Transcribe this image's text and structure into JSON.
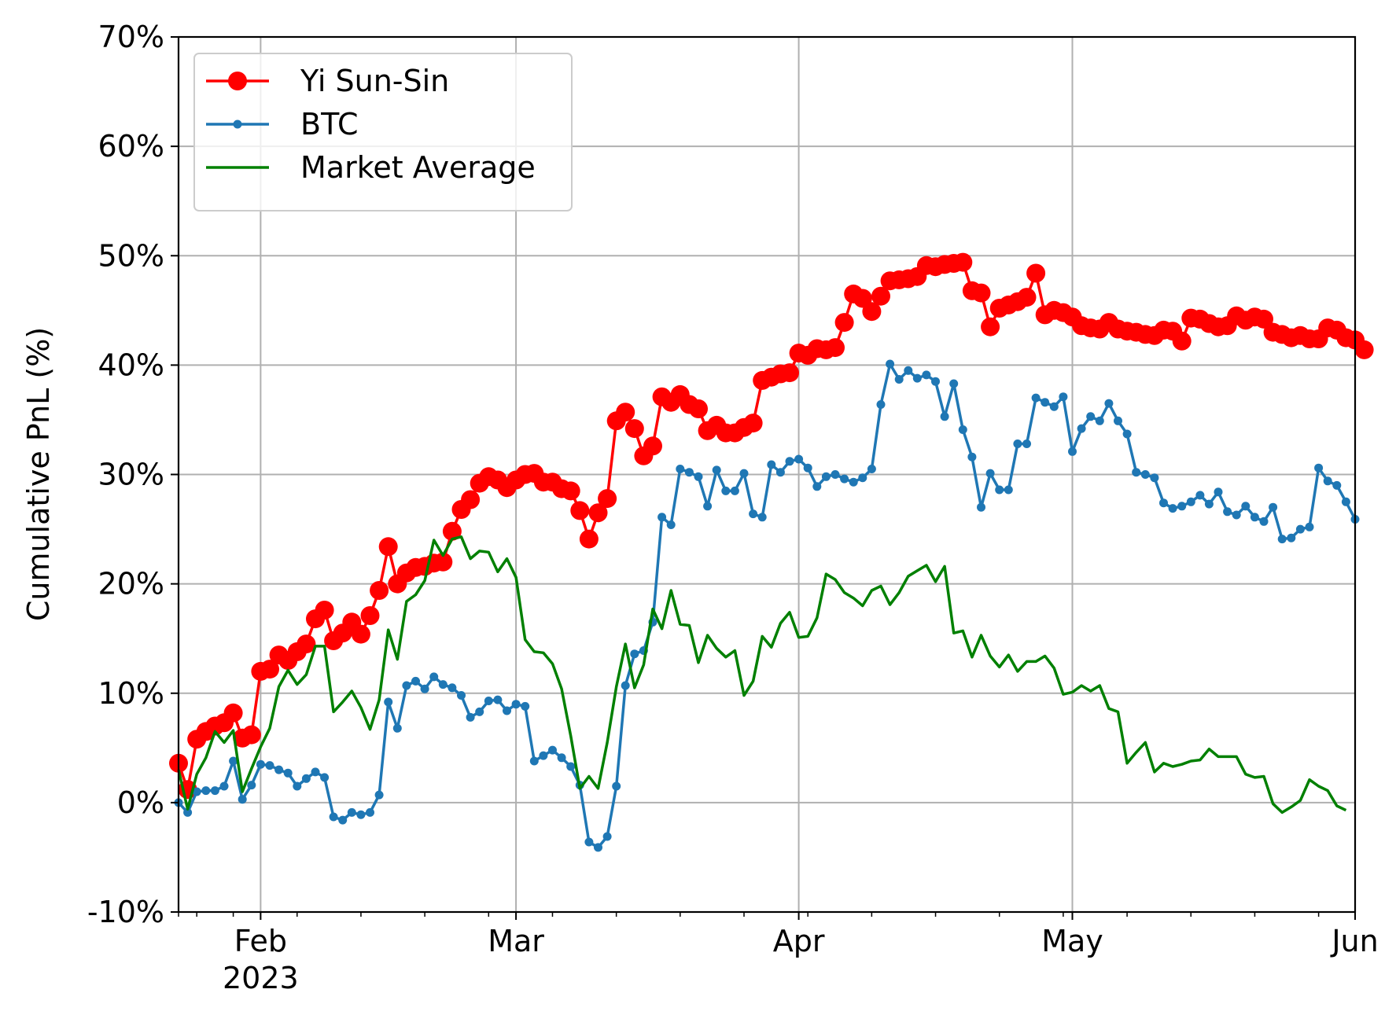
{
  "chart_data": {
    "type": "line",
    "title": "",
    "xlabel": "",
    "ylabel": "Cumulative PnL (%)",
    "ylim": [
      -10,
      70
    ],
    "xlim": [
      "2023-01-23",
      "2023-06-01"
    ],
    "grid": true,
    "legend_position": "upper-left",
    "y_ticks": [
      -10,
      0,
      10,
      20,
      30,
      40,
      50,
      60,
      70
    ],
    "y_tick_labels": [
      "-10%",
      "0%",
      "10%",
      "20%",
      "30%",
      "40%",
      "50%",
      "60%",
      "70%"
    ],
    "x_major_ticks": [
      {
        "date": "2023-02-01",
        "label": "Feb",
        "sublabel": "2023"
      },
      {
        "date": "2023-03-01",
        "label": "Mar",
        "sublabel": ""
      },
      {
        "date": "2023-04-01",
        "label": "Apr",
        "sublabel": ""
      },
      {
        "date": "2023-05-01",
        "label": "May",
        "sublabel": ""
      },
      {
        "date": "2023-06-01",
        "label": "Jun",
        "sublabel": ""
      }
    ],
    "x_minor_ticks": [
      "2023-01-23",
      "2023-01-25",
      "2023-01-29",
      "2023-02-05",
      "2023-02-12",
      "2023-02-19",
      "2023-02-26",
      "2023-03-05",
      "2023-03-12",
      "2023-03-19",
      "2023-03-26",
      "2023-04-02",
      "2023-04-09",
      "2023-04-16",
      "2023-04-23",
      "2023-04-30",
      "2023-05-07",
      "2023-05-14",
      "2023-05-21",
      "2023-05-28"
    ],
    "start_date": "2023-01-23",
    "series": [
      {
        "name": "Yi Sun-Sin",
        "color": "#ff0000",
        "marker": "large-circle",
        "values": [
          3.6,
          1.2,
          5.8,
          6.5,
          7.0,
          7.3,
          8.2,
          5.9,
          6.2,
          12.0,
          12.2,
          13.5,
          13.0,
          13.8,
          14.5,
          16.8,
          17.6,
          14.8,
          15.5,
          16.5,
          15.4,
          17.1,
          19.4,
          23.4,
          20.0,
          21.0,
          21.5,
          21.6,
          21.9,
          22.0,
          24.8,
          26.8,
          27.7,
          29.2,
          29.8,
          29.5,
          28.8,
          29.5,
          30.0,
          30.1,
          29.3,
          29.3,
          28.7,
          28.5,
          26.7,
          24.1,
          26.5,
          27.8,
          34.9,
          35.7,
          34.2,
          31.7,
          32.6,
          37.1,
          36.6,
          37.3,
          36.4,
          36.0,
          34.0,
          34.5,
          33.8,
          33.8,
          34.3,
          34.7,
          38.6,
          38.9,
          39.2,
          39.3,
          41.1,
          40.9,
          41.5,
          41.4,
          41.6,
          43.9,
          46.5,
          46.1,
          44.9,
          46.3,
          47.7,
          47.8,
          47.9,
          48.1,
          49.1,
          49.0,
          49.2,
          49.3,
          49.4,
          46.8,
          46.6,
          43.5,
          45.2,
          45.5,
          45.8,
          46.2,
          48.4,
          44.6,
          45.0,
          44.8,
          44.4,
          43.6,
          43.4,
          43.3,
          43.9,
          43.3,
          43.1,
          43.0,
          42.8,
          42.7,
          43.2,
          43.1,
          42.2,
          44.3,
          44.2,
          43.8,
          43.5,
          43.6,
          44.5,
          44.1,
          44.4,
          44.2,
          43.0,
          42.8,
          42.5,
          42.7,
          42.4,
          42.4,
          43.4,
          43.2,
          42.5,
          42.3,
          41.4
        ]
      },
      {
        "name": "BTC",
        "color": "#1f77b4",
        "marker": "small-dot",
        "values": [
          0.0,
          -0.9,
          1.0,
          1.1,
          1.1,
          1.5,
          3.8,
          0.3,
          1.6,
          3.5,
          3.4,
          3.0,
          2.7,
          1.5,
          2.2,
          2.8,
          2.3,
          -1.3,
          -1.6,
          -0.9,
          -1.1,
          -0.9,
          0.7,
          9.2,
          6.8,
          10.7,
          11.1,
          10.4,
          11.5,
          10.8,
          10.5,
          9.8,
          7.8,
          8.3,
          9.3,
          9.4,
          8.4,
          9.0,
          8.8,
          3.8,
          4.3,
          4.8,
          4.1,
          3.3,
          1.6,
          -3.6,
          -4.1,
          -3.1,
          1.5,
          10.7,
          13.6,
          13.9,
          16.5,
          26.1,
          25.4,
          30.5,
          30.2,
          29.8,
          27.1,
          30.4,
          28.5,
          28.5,
          30.1,
          26.4,
          26.1,
          30.9,
          30.2,
          31.2,
          31.4,
          30.6,
          28.9,
          29.8,
          30.0,
          29.6,
          29.3,
          29.7,
          30.5,
          36.4,
          40.1,
          38.7,
          39.5,
          38.8,
          39.1,
          38.5,
          35.3,
          38.3,
          34.1,
          31.6,
          27.0,
          30.1,
          28.6,
          28.6,
          32.8,
          32.8,
          37.0,
          36.6,
          36.2,
          37.1,
          32.1,
          34.2,
          35.3,
          34.9,
          36.5,
          34.9,
          33.7,
          30.2,
          30.0,
          29.7,
          27.4,
          26.9,
          27.1,
          27.5,
          28.1,
          27.3,
          28.4,
          26.6,
          26.3,
          27.1,
          26.1,
          25.7,
          27.0,
          24.1,
          24.2,
          25.0,
          25.2,
          30.6,
          29.4,
          29.0,
          27.5,
          25.9
        ]
      },
      {
        "name": "Market Average",
        "color": "#008000",
        "marker": "none",
        "values": [
          3.0,
          -0.6,
          2.6,
          4.1,
          6.5,
          5.5,
          6.6,
          1.0,
          3.1,
          5.1,
          6.8,
          10.6,
          12.1,
          10.8,
          11.7,
          14.3,
          14.3,
          8.3,
          9.2,
          10.2,
          8.7,
          6.7,
          9.4,
          15.8,
          13.1,
          18.4,
          19.0,
          20.3,
          24.0,
          22.6,
          24.1,
          24.3,
          22.3,
          23.0,
          22.9,
          21.1,
          22.3,
          20.6,
          14.9,
          13.8,
          13.7,
          12.7,
          10.4,
          6.1,
          1.3,
          2.4,
          1.3,
          5.5,
          10.6,
          14.5,
          10.5,
          12.6,
          17.7,
          15.9,
          19.4,
          16.3,
          16.2,
          12.8,
          15.3,
          14.1,
          13.3,
          13.9,
          9.8,
          11.1,
          15.2,
          14.2,
          16.4,
          17.4,
          15.1,
          15.2,
          16.9,
          20.9,
          20.4,
          19.2,
          18.7,
          18.0,
          19.4,
          19.8,
          18.1,
          19.2,
          20.7,
          21.2,
          21.7,
          20.2,
          21.6,
          15.5,
          15.7,
          13.3,
          15.3,
          13.4,
          12.4,
          13.5,
          12.0,
          12.9,
          12.9,
          13.4,
          12.3,
          9.9,
          10.1,
          10.7,
          10.2,
          10.7,
          8.6,
          8.3,
          3.6,
          4.6,
          5.5,
          2.8,
          3.6,
          3.3,
          3.5,
          3.8,
          3.9,
          4.9,
          4.2,
          4.2,
          4.2,
          2.6,
          2.3,
          2.4,
          -0.1,
          -0.9,
          -0.4,
          0.2,
          2.1,
          1.5,
          1.1,
          -0.3,
          -0.7
        ]
      }
    ]
  }
}
